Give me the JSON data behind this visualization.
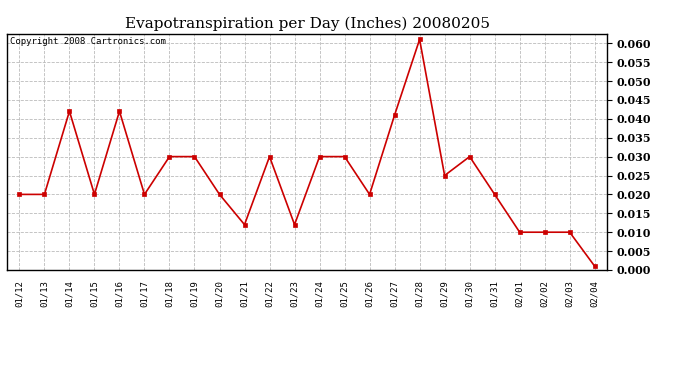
{
  "title": "Evapotranspiration per Day (Inches) 20080205",
  "copyright_text": "Copyright 2008 Cartronics.com",
  "dates": [
    "01/12",
    "01/13",
    "01/14",
    "01/15",
    "01/16",
    "01/17",
    "01/18",
    "01/19",
    "01/20",
    "01/21",
    "01/22",
    "01/23",
    "01/24",
    "01/25",
    "01/26",
    "01/27",
    "01/28",
    "01/29",
    "01/30",
    "01/31",
    "02/01",
    "02/02",
    "02/03",
    "02/04"
  ],
  "values": [
    0.02,
    0.02,
    0.042,
    0.02,
    0.042,
    0.02,
    0.03,
    0.03,
    0.02,
    0.012,
    0.03,
    0.012,
    0.03,
    0.03,
    0.02,
    0.041,
    0.061,
    0.025,
    0.03,
    0.02,
    0.01,
    0.01,
    0.01,
    0.001
  ],
  "line_color": "#cc0000",
  "marker_color": "#cc0000",
  "background_color": "#ffffff",
  "plot_bg_color": "#ffffff",
  "grid_color": "#bbbbbb",
  "ylim": [
    0.0,
    0.0625
  ],
  "ytick_min": 0.0,
  "ytick_max": 0.06,
  "ytick_step": 0.005,
  "title_fontsize": 11,
  "copyright_fontsize": 6.5,
  "xtick_fontsize": 6.5,
  "ytick_fontsize": 8
}
